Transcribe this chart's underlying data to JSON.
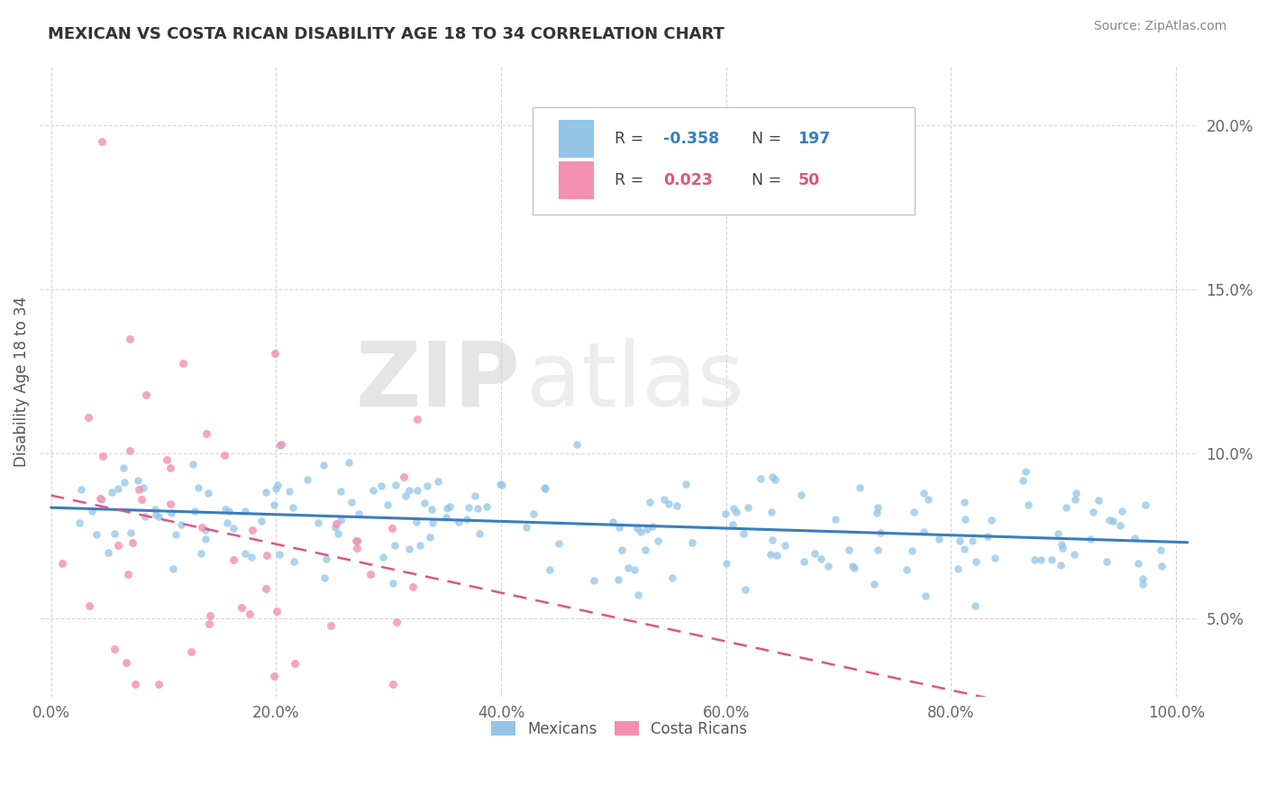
{
  "title": "MEXICAN VS COSTA RICAN DISABILITY AGE 18 TO 34 CORRELATION CHART",
  "source_text": "Source: ZipAtlas.com",
  "ylabel": "Disability Age 18 to 34",
  "x_tick_labels": [
    "0.0%",
    "20.0%",
    "40.0%",
    "60.0%",
    "80.0%",
    "100.0%"
  ],
  "x_tick_values": [
    0.0,
    0.2,
    0.4,
    0.6,
    0.8,
    1.0
  ],
  "y_tick_labels": [
    "5.0%",
    "10.0%",
    "15.0%",
    "20.0%"
  ],
  "y_tick_values": [
    0.05,
    0.1,
    0.15,
    0.2
  ],
  "xlim": [
    -0.01,
    1.02
  ],
  "ylim": [
    0.026,
    0.218
  ],
  "watermark_zip": "ZIP",
  "watermark_atlas": "atlas",
  "legend_mexican_r": "-0.358",
  "legend_mexican_n": "197",
  "legend_costarican_r": "0.023",
  "legend_costarican_n": "50",
  "mexican_color": "#92c5e8",
  "costarican_color": "#f48fb1",
  "mexican_line_color": "#3a7dbf",
  "costarican_line_color": "#e05580",
  "background_color": "#ffffff",
  "grid_color": "#d8d8d8",
  "title_color": "#333333",
  "r_color_blue": "#3a7dbf",
  "n_color_blue": "#3a7dbf",
  "r_color_pink": "#e05580",
  "n_color_pink": "#e05580"
}
